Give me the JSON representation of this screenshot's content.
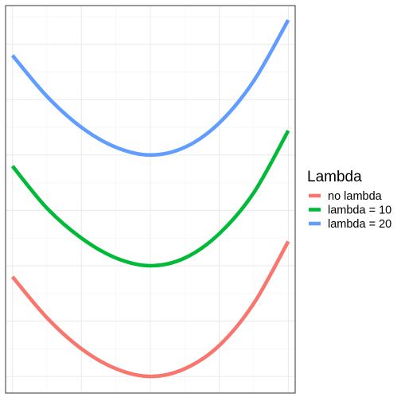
{
  "chart_data": {
    "type": "line",
    "title": "",
    "xlabel": "",
    "ylabel": "",
    "xlim": [
      -1.05,
      1.05
    ],
    "ylim": [
      -1.15,
      2.35
    ],
    "grid": true,
    "legend_position": "right",
    "legend": {
      "title": "Lambda"
    },
    "series": [
      {
        "name": "no lambda",
        "color": "#F8766D",
        "x": [
          -1,
          -0.75,
          -0.5,
          -0.25,
          0,
          0.25,
          0.5,
          0.75,
          1
        ],
        "y": [
          -0.1,
          -0.47,
          -0.75,
          -0.93,
          -1.0,
          -0.93,
          -0.72,
          -0.34,
          0.22
        ]
      },
      {
        "name": "lambda = 10",
        "color": "#00BA38",
        "x": [
          -1,
          -0.75,
          -0.5,
          -0.25,
          0,
          0.25,
          0.5,
          0.75,
          1
        ],
        "y": [
          0.9,
          0.52,
          0.25,
          0.07,
          0.0,
          0.07,
          0.29,
          0.66,
          1.22
        ]
      },
      {
        "name": "lambda = 20",
        "color": "#619CFF",
        "x": [
          -1,
          -0.75,
          -0.5,
          -0.25,
          0,
          0.25,
          0.5,
          0.75,
          1
        ],
        "y": [
          1.9,
          1.53,
          1.25,
          1.07,
          1.0,
          1.07,
          1.29,
          1.67,
          2.22
        ]
      }
    ]
  }
}
